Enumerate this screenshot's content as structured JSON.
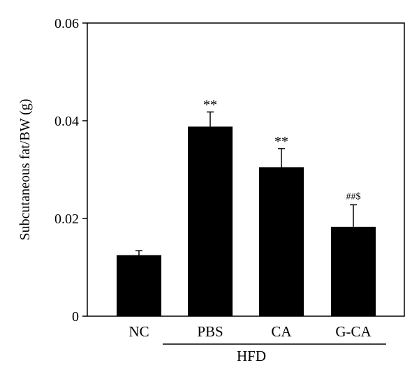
{
  "chart_data": {
    "type": "bar",
    "title": "",
    "xlabel": "",
    "ylabel": "Subcutaneous fat/BW (g)",
    "ylim": [
      0,
      0.06
    ],
    "yticks": [
      "0",
      "0.02",
      "0.04",
      "0.06"
    ],
    "categories": [
      "NC",
      "PBS",
      "CA",
      "G-CA"
    ],
    "values": [
      0.0125,
      0.0388,
      0.0305,
      0.0183
    ],
    "errors": [
      0.0009,
      0.003,
      0.0038,
      0.0045
    ],
    "annotations": [
      "",
      "**",
      "**",
      "##$"
    ],
    "group_label": {
      "text": "HFD",
      "spans": [
        "PBS",
        "G-CA"
      ]
    },
    "bar_color": "#000000",
    "grid": false
  }
}
